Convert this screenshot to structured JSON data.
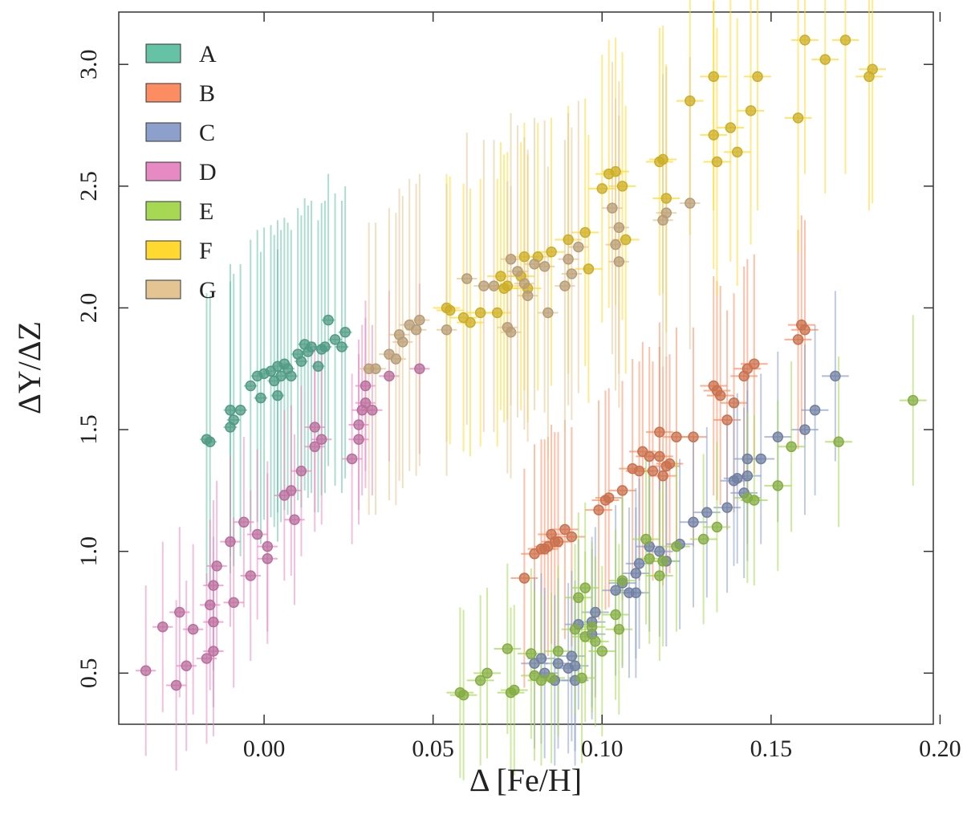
{
  "chart_data": {
    "type": "scatter",
    "xlabel": "Δ [Fe/H]",
    "ylabel": "ΔY/ΔZ",
    "xlim": [
      -0.043,
      0.198
    ],
    "ylim": [
      0.29,
      3.215
    ],
    "xticks": [
      {
        "value": 0,
        "label": "0.00"
      },
      0.05,
      {
        "value": 0.1,
        "label": "0.10"
      },
      0.15,
      {
        "value": 0.2,
        "label": "0.20"
      }
    ],
    "yticks": [
      0.5,
      {
        "value": 1,
        "label": "1.0"
      },
      1.5,
      {
        "value": 2,
        "label": "2.0"
      },
      2.5,
      {
        "value": 3,
        "label": "3.0"
      }
    ],
    "legend": "upper-left",
    "series": [
      {
        "name": "A",
        "color": "#66c2a5",
        "yerr": 0.6,
        "xerr": 0.002,
        "x": [
          -0.017,
          -0.016,
          -0.01,
          -0.01,
          -0.009,
          -0.007,
          -0.004,
          -0.002,
          -0.001,
          0.0,
          0.002,
          0.003,
          0.004,
          0.004,
          0.005,
          0.006,
          0.007,
          0.008,
          0.01,
          0.011,
          0.012,
          0.013,
          0.014,
          0.016,
          0.017,
          0.018,
          0.019,
          0.021,
          0.023,
          0.024
        ],
        "values": [
          1.46,
          1.45,
          1.58,
          1.51,
          1.54,
          1.58,
          1.68,
          1.72,
          1.63,
          1.73,
          1.74,
          1.7,
          1.76,
          1.64,
          1.72,
          1.77,
          1.75,
          1.72,
          1.81,
          1.78,
          1.85,
          1.82,
          1.84,
          1.76,
          1.83,
          1.84,
          1.95,
          1.87,
          1.84,
          1.9
        ]
      },
      {
        "name": "B",
        "color": "#fc8d62",
        "yerr": 0.45,
        "xerr": 0.004,
        "x": [
          0.077,
          0.08,
          0.082,
          0.083,
          0.084,
          0.085,
          0.086,
          0.087,
          0.089,
          0.091,
          0.099,
          0.101,
          0.102,
          0.106,
          0.109,
          0.111,
          0.112,
          0.114,
          0.115,
          0.117,
          0.117,
          0.118,
          0.119,
          0.12,
          0.122,
          0.127,
          0.133,
          0.134,
          0.135,
          0.137,
          0.139,
          0.142,
          0.143,
          0.145,
          0.158,
          0.159,
          0.16
        ],
        "values": [
          0.89,
          0.99,
          1.01,
          1.01,
          1.02,
          1.07,
          1.04,
          1.04,
          1.09,
          1.06,
          1.17,
          1.21,
          1.22,
          1.25,
          1.34,
          1.33,
          1.41,
          1.39,
          1.33,
          1.49,
          1.39,
          1.31,
          1.35,
          1.36,
          1.47,
          1.47,
          1.68,
          1.66,
          1.64,
          1.54,
          1.61,
          1.72,
          1.75,
          1.77,
          1.87,
          1.93,
          1.91
        ]
      },
      {
        "name": "C",
        "color": "#8da0cb",
        "yerr": 0.35,
        "xerr": 0.004,
        "x": [
          0.08,
          0.082,
          0.083,
          0.086,
          0.087,
          0.09,
          0.091,
          0.092,
          0.092,
          0.093,
          0.097,
          0.097,
          0.098,
          0.104,
          0.106,
          0.108,
          0.11,
          0.11,
          0.111,
          0.114,
          0.117,
          0.119,
          0.123,
          0.127,
          0.131,
          0.137,
          0.139,
          0.14,
          0.142,
          0.143,
          0.143,
          0.147,
          0.152,
          0.16,
          0.163,
          0.169
        ],
        "values": [
          0.54,
          0.56,
          0.5,
          0.47,
          0.54,
          0.52,
          0.57,
          0.47,
          0.53,
          0.7,
          0.66,
          0.71,
          0.75,
          0.84,
          0.87,
          0.83,
          0.91,
          0.83,
          0.95,
          1.02,
          1.0,
          0.96,
          1.03,
          1.12,
          1.16,
          1.18,
          1.29,
          1.3,
          1.24,
          1.38,
          1.31,
          1.38,
          1.47,
          1.5,
          1.58,
          1.72
        ]
      },
      {
        "name": "D",
        "color": "#e78ac3",
        "yerr": 0.35,
        "xerr": 0.003,
        "x": [
          -0.035,
          -0.03,
          -0.026,
          -0.025,
          -0.023,
          -0.021,
          -0.017,
          -0.016,
          -0.015,
          -0.015,
          -0.015,
          -0.014,
          -0.01,
          -0.009,
          -0.006,
          -0.004,
          -0.002,
          0.001,
          0.001,
          0.006,
          0.008,
          0.009,
          0.011,
          0.015,
          0.015,
          0.017,
          0.026,
          0.028,
          0.028,
          0.029,
          0.03,
          0.03,
          0.032,
          0.037,
          0.046
        ],
        "values": [
          0.51,
          0.69,
          0.45,
          0.75,
          0.53,
          0.68,
          0.56,
          0.78,
          0.59,
          0.71,
          0.86,
          0.94,
          1.04,
          0.79,
          1.12,
          0.9,
          1.07,
          1.02,
          0.97,
          1.23,
          1.25,
          1.13,
          1.33,
          1.43,
          1.51,
          1.46,
          1.38,
          1.46,
          1.52,
          1.58,
          1.61,
          1.68,
          1.58,
          1.72,
          1.75
        ]
      },
      {
        "name": "E",
        "color": "#a6d854",
        "yerr": 0.35,
        "xerr": 0.004,
        "x": [
          0.058,
          0.059,
          0.064,
          0.066,
          0.072,
          0.073,
          0.074,
          0.079,
          0.08,
          0.082,
          0.085,
          0.087,
          0.092,
          0.093,
          0.094,
          0.095,
          0.095,
          0.097,
          0.098,
          0.1,
          0.104,
          0.105,
          0.106,
          0.113,
          0.114,
          0.117,
          0.118,
          0.122,
          0.13,
          0.134,
          0.143,
          0.145,
          0.152,
          0.156,
          0.17,
          0.192
        ],
        "values": [
          0.42,
          0.41,
          0.47,
          0.5,
          0.6,
          0.42,
          0.43,
          0.58,
          0.49,
          0.47,
          0.48,
          0.59,
          0.68,
          0.81,
          0.48,
          0.85,
          0.65,
          0.69,
          0.63,
          0.59,
          0.74,
          0.68,
          0.88,
          1.05,
          0.97,
          0.9,
          0.96,
          1.02,
          1.05,
          1.1,
          1.22,
          1.21,
          1.27,
          1.43,
          1.45,
          1.62
        ]
      },
      {
        "name": "F",
        "color": "#ffd92f",
        "yerr": 0.55,
        "xerr": 0.004,
        "x": [
          0.054,
          0.055,
          0.059,
          0.061,
          0.064,
          0.069,
          0.07,
          0.071,
          0.072,
          0.076,
          0.077,
          0.078,
          0.081,
          0.085,
          0.09,
          0.095,
          0.096,
          0.1,
          0.102,
          0.104,
          0.106,
          0.107,
          0.117,
          0.118,
          0.119,
          0.126,
          0.133,
          0.133,
          0.134,
          0.138,
          0.14,
          0.144,
          0.146,
          0.158,
          0.16,
          0.166,
          0.172,
          0.179,
          0.18
        ],
        "values": [
          2.0,
          1.99,
          1.96,
          1.94,
          1.98,
          1.98,
          2.13,
          2.08,
          2.09,
          2.13,
          2.21,
          2.08,
          2.21,
          2.23,
          2.28,
          2.31,
          2.16,
          2.49,
          2.55,
          2.56,
          2.5,
          2.28,
          2.6,
          2.61,
          2.45,
          2.85,
          2.95,
          2.71,
          2.6,
          2.74,
          2.64,
          2.81,
          2.95,
          2.78,
          3.1,
          3.02,
          3.1,
          2.95,
          2.98
        ]
      },
      {
        "name": "G",
        "color": "#e5c494",
        "yerr": 0.6,
        "xerr": 0.003,
        "x": [
          0.031,
          0.033,
          0.037,
          0.039,
          0.04,
          0.041,
          0.043,
          0.045,
          0.046,
          0.054,
          0.06,
          0.065,
          0.068,
          0.072,
          0.073,
          0.073,
          0.075,
          0.077,
          0.078,
          0.08,
          0.083,
          0.084,
          0.089,
          0.09,
          0.091,
          0.093,
          0.103,
          0.104,
          0.105,
          0.105,
          0.118,
          0.119,
          0.126
        ],
        "values": [
          1.75,
          1.75,
          1.81,
          1.79,
          1.89,
          1.86,
          1.93,
          1.91,
          1.95,
          1.91,
          2.12,
          2.09,
          2.09,
          1.92,
          2.2,
          1.9,
          2.15,
          2.1,
          2.05,
          2.18,
          2.17,
          1.98,
          2.09,
          2.2,
          2.14,
          2.25,
          2.41,
          2.26,
          2.19,
          2.33,
          2.36,
          2.39,
          2.43
        ]
      }
    ]
  }
}
